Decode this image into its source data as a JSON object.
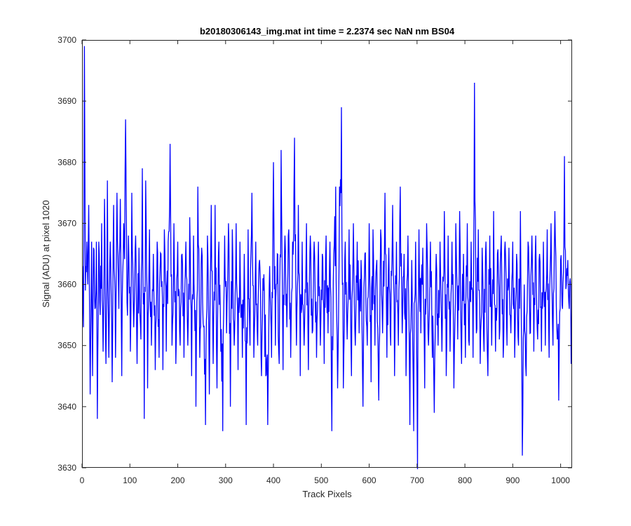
{
  "chart_data": {
    "type": "line",
    "title": "b20180306143_img.mat int time = 2.2374 sec  NaN nm BS04",
    "xlabel": "Track Pixels",
    "ylabel": "Signal (ADU) at pixel 1020",
    "xlim": [
      0,
      1024
    ],
    "ylim": [
      3630,
      3700
    ],
    "xticks": [
      0,
      100,
      200,
      300,
      400,
      500,
      600,
      700,
      800,
      900,
      1000
    ],
    "yticks": [
      3630,
      3640,
      3650,
      3660,
      3670,
      3680,
      3690,
      3700
    ],
    "grid": false,
    "legend": "none",
    "line_color": "#0000ff",
    "series": [
      {
        "x_start": 1,
        "x_step": 1,
        "anchors": [
          [
            1,
            3663
          ],
          [
            3,
            3653
          ],
          [
            5,
            3699
          ],
          [
            7,
            3659
          ],
          [
            10,
            3667
          ],
          [
            12,
            3660
          ],
          [
            14,
            3673
          ],
          [
            17,
            3642
          ],
          [
            20,
            3667
          ],
          [
            22,
            3645
          ],
          [
            24,
            3666
          ],
          [
            27,
            3656
          ],
          [
            30,
            3667
          ],
          [
            32,
            3638
          ],
          [
            35,
            3667
          ],
          [
            38,
            3655
          ],
          [
            41,
            3670
          ],
          [
            44,
            3649
          ],
          [
            47,
            3674
          ],
          [
            50,
            3647
          ],
          [
            53,
            3677
          ],
          [
            56,
            3648
          ],
          [
            59,
            3667
          ],
          [
            63,
            3644
          ],
          [
            66,
            3673
          ],
          [
            70,
            3648
          ],
          [
            73,
            3675
          ],
          [
            77,
            3656
          ],
          [
            80,
            3674
          ],
          [
            83,
            3645
          ],
          [
            87,
            3670
          ],
          [
            91,
            3687
          ],
          [
            94,
            3657
          ],
          [
            97,
            3668
          ],
          [
            101,
            3649
          ],
          [
            104,
            3675
          ],
          [
            108,
            3653
          ],
          [
            112,
            3668
          ],
          [
            115,
            3647
          ],
          [
            119,
            3666
          ],
          [
            123,
            3651
          ],
          [
            126,
            3679
          ],
          [
            130,
            3638
          ],
          [
            133,
            3677
          ],
          [
            137,
            3643
          ],
          [
            141,
            3669
          ],
          [
            145,
            3650
          ],
          [
            149,
            3665
          ],
          [
            153,
            3646
          ],
          [
            157,
            3667
          ],
          [
            161,
            3648
          ],
          [
            165,
            3665
          ],
          [
            169,
            3646
          ],
          [
            172,
            3669
          ],
          [
            176,
            3649
          ],
          [
            180,
            3667
          ],
          [
            184,
            3683
          ],
          [
            188,
            3650
          ],
          [
            192,
            3670
          ],
          [
            196,
            3647
          ],
          [
            200,
            3667
          ],
          [
            205,
            3650
          ],
          [
            209,
            3665
          ],
          [
            213,
            3648
          ],
          [
            217,
            3667
          ],
          [
            221,
            3650
          ],
          [
            225,
            3671
          ],
          [
            229,
            3645
          ],
          [
            233,
            3668
          ],
          [
            238,
            3640
          ],
          [
            242,
            3676
          ],
          [
            246,
            3648
          ],
          [
            250,
            3666
          ],
          [
            254,
            3653
          ],
          [
            258,
            3637
          ],
          [
            262,
            3668
          ],
          [
            266,
            3642
          ],
          [
            270,
            3673
          ],
          [
            274,
            3647
          ],
          [
            278,
            3673
          ],
          [
            282,
            3643
          ],
          [
            286,
            3667
          ],
          [
            290,
            3649
          ],
          [
            294,
            3636
          ],
          [
            298,
            3668
          ],
          [
            302,
            3652
          ],
          [
            306,
            3670
          ],
          [
            310,
            3640
          ],
          [
            314,
            3669
          ],
          [
            318,
            3650
          ],
          [
            322,
            3670
          ],
          [
            326,
            3646
          ],
          [
            330,
            3667
          ],
          [
            335,
            3648
          ],
          [
            339,
            3665
          ],
          [
            343,
            3637
          ],
          [
            347,
            3669
          ],
          [
            351,
            3650
          ],
          [
            355,
            3675
          ],
          [
            359,
            3648
          ],
          [
            363,
            3667
          ],
          [
            367,
            3650
          ],
          [
            371,
            3664
          ],
          [
            375,
            3645
          ],
          [
            379,
            3659
          ],
          [
            384,
            3645
          ],
          [
            388,
            3637
          ],
          [
            392,
            3663
          ],
          [
            396,
            3648
          ],
          [
            400,
            3680
          ],
          [
            404,
            3650
          ],
          [
            408,
            3665
          ],
          [
            412,
            3647
          ],
          [
            416,
            3682
          ],
          [
            420,
            3646
          ],
          [
            424,
            3668
          ],
          [
            428,
            3653
          ],
          [
            432,
            3669
          ],
          [
            436,
            3648
          ],
          [
            440,
            3667
          ],
          [
            444,
            3684
          ],
          [
            448,
            3650
          ],
          [
            452,
            3673
          ],
          [
            456,
            3645
          ],
          [
            460,
            3667
          ],
          [
            464,
            3650
          ],
          [
            469,
            3670
          ],
          [
            473,
            3646
          ],
          [
            477,
            3668
          ],
          [
            481,
            3652
          ],
          [
            485,
            3667
          ],
          [
            490,
            3648
          ],
          [
            494,
            3667
          ],
          [
            498,
            3650
          ],
          [
            502,
            3665
          ],
          [
            506,
            3647
          ],
          [
            510,
            3668
          ],
          [
            514,
            3652
          ],
          [
            518,
            3667
          ],
          [
            522,
            3636
          ],
          [
            526,
            3665
          ],
          [
            530,
            3676
          ],
          [
            534,
            3643
          ],
          [
            538,
            3676
          ],
          [
            542,
            3689
          ],
          [
            546,
            3643
          ],
          [
            550,
            3667
          ],
          [
            554,
            3651
          ],
          [
            558,
            3669
          ],
          [
            563,
            3645
          ],
          [
            567,
            3670
          ],
          [
            571,
            3650
          ],
          [
            575,
            3667
          ],
          [
            579,
            3652
          ],
          [
            583,
            3664
          ],
          [
            587,
            3640
          ],
          [
            591,
            3665
          ],
          [
            596,
            3650
          ],
          [
            600,
            3670
          ],
          [
            604,
            3644
          ],
          [
            608,
            3669
          ],
          [
            612,
            3650
          ],
          [
            616,
            3664
          ],
          [
            620,
            3641
          ],
          [
            624,
            3669
          ],
          [
            628,
            3652
          ],
          [
            633,
            3675
          ],
          [
            637,
            3648
          ],
          [
            641,
            3666
          ],
          [
            645,
            3650
          ],
          [
            649,
            3673
          ],
          [
            653,
            3645
          ],
          [
            657,
            3667
          ],
          [
            661,
            3650
          ],
          [
            665,
            3676
          ],
          [
            669,
            3652
          ],
          [
            673,
            3665
          ],
          [
            677,
            3645
          ],
          [
            681,
            3668
          ],
          [
            685,
            3637
          ],
          [
            689,
            3664
          ],
          [
            693,
            3636
          ],
          [
            697,
            3667
          ],
          [
            701,
            3629
          ],
          [
            704,
            3669
          ],
          [
            708,
            3652
          ],
          [
            712,
            3666
          ],
          [
            716,
            3643
          ],
          [
            720,
            3670
          ],
          [
            724,
            3650
          ],
          [
            728,
            3667
          ],
          [
            732,
            3648
          ],
          [
            736,
            3639
          ],
          [
            740,
            3665
          ],
          [
            744,
            3650
          ],
          [
            748,
            3667
          ],
          [
            752,
            3649
          ],
          [
            757,
            3672
          ],
          [
            761,
            3645
          ],
          [
            765,
            3668
          ],
          [
            769,
            3649
          ],
          [
            773,
            3667
          ],
          [
            777,
            3643
          ],
          [
            781,
            3670
          ],
          [
            785,
            3651
          ],
          [
            789,
            3672
          ],
          [
            793,
            3647
          ],
          [
            797,
            3665
          ],
          [
            801,
            3648
          ],
          [
            805,
            3670
          ],
          [
            809,
            3650
          ],
          [
            813,
            3667
          ],
          [
            817,
            3648
          ],
          [
            820,
            3693
          ],
          [
            824,
            3652
          ],
          [
            828,
            3669
          ],
          [
            832,
            3647
          ],
          [
            836,
            3666
          ],
          [
            840,
            3649
          ],
          [
            844,
            3667
          ],
          [
            848,
            3645
          ],
          [
            852,
            3668
          ],
          [
            856,
            3650
          ],
          [
            860,
            3672
          ],
          [
            864,
            3649
          ],
          [
            868,
            3665
          ],
          [
            872,
            3651
          ],
          [
            876,
            3668
          ],
          [
            880,
            3648
          ],
          [
            884,
            3667
          ],
          [
            888,
            3650
          ],
          [
            892,
            3666
          ],
          [
            896,
            3652
          ],
          [
            900,
            3667
          ],
          [
            904,
            3648
          ],
          [
            908,
            3665
          ],
          [
            912,
            3650
          ],
          [
            916,
            3672
          ],
          [
            920,
            3632
          ],
          [
            924,
            3660
          ],
          [
            928,
            3645
          ],
          [
            932,
            3667
          ],
          [
            936,
            3652
          ],
          [
            940,
            3668
          ],
          [
            944,
            3649
          ],
          [
            948,
            3668
          ],
          [
            952,
            3651
          ],
          [
            956,
            3665
          ],
          [
            960,
            3649
          ],
          [
            964,
            3667
          ],
          [
            968,
            3650
          ],
          [
            972,
            3669
          ],
          [
            976,
            3648
          ],
          [
            980,
            3670
          ],
          [
            984,
            3650
          ],
          [
            988,
            3672
          ],
          [
            992,
            3653
          ],
          [
            996,
            3641
          ],
          [
            1000,
            3664
          ],
          [
            1004,
            3656
          ],
          [
            1008,
            3681
          ],
          [
            1012,
            3660
          ],
          [
            1015,
            3664
          ],
          [
            1018,
            3656
          ],
          [
            1020,
            3661
          ],
          [
            1022,
            3647
          ],
          [
            1024,
            3660
          ]
        ],
        "samples": [
          3663,
          3657,
          3653,
          3675,
          3699,
          3679,
          3659,
          3663,
          3662,
          3667,
          3664,
          3660,
          3666,
          3673,
          3663,
          3653,
          3642,
          3650,
          3658,
          3667
        ]
      }
    ]
  }
}
